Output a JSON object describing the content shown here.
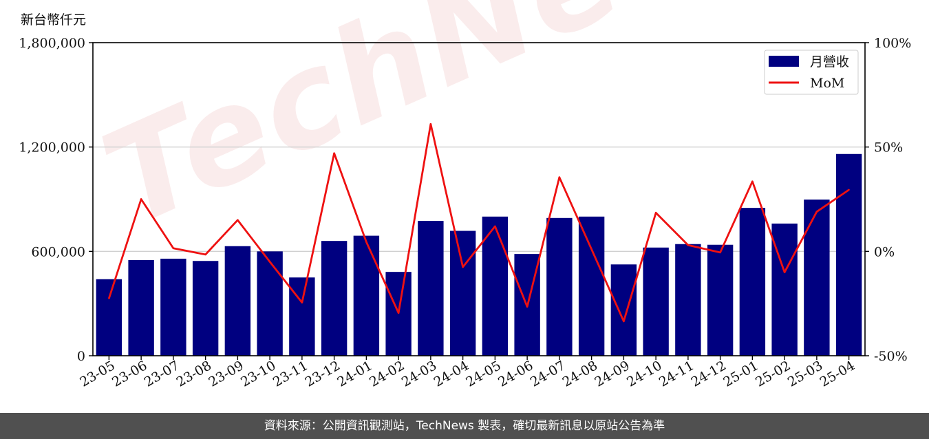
{
  "watermark": "TechNews",
  "unit_label": "新台幣仟元",
  "footer": "資料來源：公開資訊觀測站，TechNews 製表，確切最新訊息以原站公告為準",
  "colors": {
    "bar": "#000080",
    "line": "#ee1111",
    "grid": "#d0d0d0"
  },
  "chart_data": {
    "type": "bar",
    "categories": [
      "23-05",
      "23-06",
      "23-07",
      "23-08",
      "23-09",
      "23-10",
      "23-11",
      "23-12",
      "24-01",
      "24-02",
      "24-03",
      "24-04",
      "24-05",
      "24-06",
      "24-07",
      "24-08",
      "24-09",
      "24-10",
      "24-11",
      "24-12",
      "25-01",
      "25-02",
      "25-03",
      "25-04"
    ],
    "series": [
      {
        "name": "月營收",
        "type": "bar",
        "axis": "left",
        "values": [
          440000,
          550000,
          558000,
          545000,
          630000,
          600000,
          450000,
          660000,
          690000,
          482000,
          775000,
          718000,
          800000,
          585000,
          792000,
          800000,
          525000,
          622000,
          642000,
          638000,
          850000,
          760000,
          898000,
          1160000
        ]
      },
      {
        "name": "MoM",
        "type": "line",
        "axis": "right",
        "values": [
          -22.5,
          25,
          1.5,
          -1.5,
          15,
          -5,
          -24.5,
          47,
          4.5,
          -29.5,
          61,
          -7.5,
          12,
          -26.5,
          35.5,
          1,
          -33.5,
          18.5,
          3,
          -0.5,
          33.5,
          -10,
          19,
          29.5
        ]
      }
    ],
    "left_axis": {
      "ylim": [
        0,
        1800000
      ],
      "ticks": [
        "0",
        "600,000",
        "1,200,000",
        "1,800,000"
      ],
      "tick_values": [
        0,
        600000,
        1200000,
        1800000
      ]
    },
    "right_axis": {
      "ylim": [
        -50,
        100
      ],
      "ticks": [
        "-50%",
        "0%",
        "50%",
        "100%"
      ],
      "tick_values": [
        -50,
        0,
        50,
        100
      ]
    },
    "grid": true,
    "legend_placement": "top-right"
  }
}
